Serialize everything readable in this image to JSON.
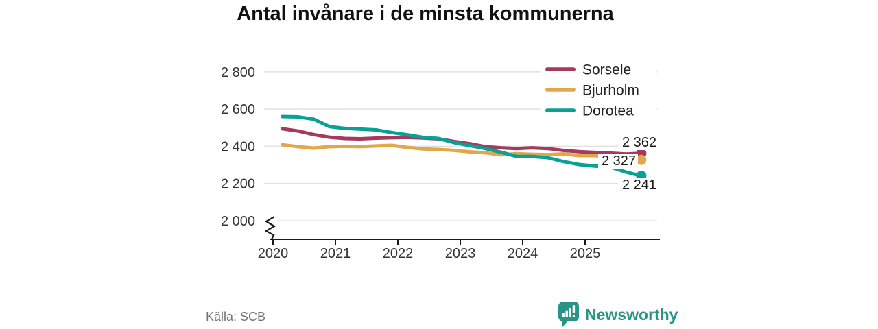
{
  "title": "Antal invånare i de minsta kommunerna",
  "source": {
    "label": "Källa: SCB"
  },
  "branding": {
    "name": "Newsworthy",
    "color": "#2a9488",
    "icon": "bar-chart-speech-bubble-icon"
  },
  "chart_data": {
    "type": "line",
    "title": "Antal invånare i de minsta kommunerna",
    "xlabel": "",
    "ylabel": "",
    "x": [
      2020.15,
      2020.4,
      2020.65,
      2020.9,
      2021.15,
      2021.4,
      2021.65,
      2021.9,
      2022.15,
      2022.4,
      2022.65,
      2022.9,
      2023.15,
      2023.4,
      2023.65,
      2023.9,
      2024.15,
      2024.4,
      2024.65,
      2024.9,
      2025.15,
      2025.4,
      2025.65,
      2025.9
    ],
    "series": [
      {
        "name": "Sorsele",
        "color": "#a53a5f",
        "values": [
          2494,
          2482,
          2463,
          2449,
          2442,
          2440,
          2444,
          2446,
          2448,
          2445,
          2440,
          2426,
          2414,
          2398,
          2392,
          2388,
          2392,
          2388,
          2378,
          2371,
          2367,
          2363,
          2358,
          2362
        ],
        "end_value": 2362,
        "end_label": "2 362"
      },
      {
        "name": "Bjurholm",
        "color": "#e0a84a",
        "values": [
          2408,
          2398,
          2390,
          2398,
          2400,
          2398,
          2402,
          2405,
          2394,
          2386,
          2383,
          2378,
          2370,
          2365,
          2354,
          2360,
          2357,
          2355,
          2359,
          2350,
          2350,
          2341,
          2338,
          2327
        ],
        "end_value": 2327,
        "end_label": "2 327"
      },
      {
        "name": "Dorotea",
        "color": "#09a096",
        "values": [
          2560,
          2558,
          2546,
          2506,
          2496,
          2492,
          2488,
          2474,
          2462,
          2448,
          2442,
          2420,
          2404,
          2388,
          2368,
          2346,
          2345,
          2339,
          2318,
          2302,
          2294,
          2289,
          2262,
          2241
        ],
        "end_value": 2241,
        "end_label": "2 241"
      }
    ],
    "yticks": [
      {
        "value": 2000,
        "label": "2 000"
      },
      {
        "value": 2200,
        "label": "2 200"
      },
      {
        "value": 2400,
        "label": "2 400"
      },
      {
        "value": 2600,
        "label": "2 600"
      },
      {
        "value": 2800,
        "label": "2 800"
      }
    ],
    "xticks": [
      {
        "value": 2020,
        "label": "2020"
      },
      {
        "value": 2021,
        "label": "2021"
      },
      {
        "value": 2022,
        "label": "2022"
      },
      {
        "value": 2023,
        "label": "2023"
      },
      {
        "value": 2024,
        "label": "2024"
      },
      {
        "value": 2025,
        "label": "2025"
      }
    ],
    "ylim": [
      2000,
      2800
    ],
    "axis_break": true,
    "grid": "horizontal",
    "legend_position": "top-right",
    "colors": {
      "grid": "#e3e3e3",
      "axis": "#1a1a1a",
      "tick_text": "#333333",
      "label_text": "#1a1a1a"
    }
  }
}
